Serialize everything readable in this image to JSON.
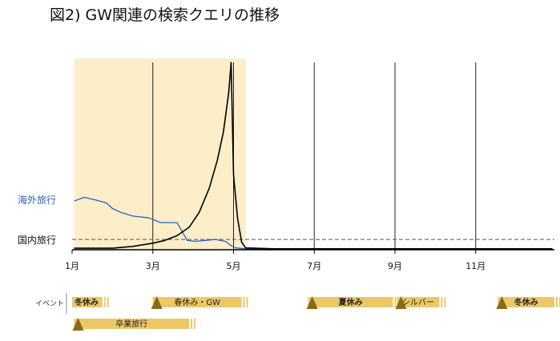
{
  "title": "図2) GW関連の検索クエリの推移",
  "colors": {
    "highlight": "#fbeec8",
    "overseas": "#2c5fbf",
    "domestic": "#000000",
    "event_bar": "#ecc868",
    "event_marker": "#8a6a1a"
  },
  "chart_data": {
    "type": "line",
    "x_unit": "month",
    "xlim": [
      1,
      12.95
    ],
    "ylim": [
      0,
      100
    ],
    "x_ticks": [
      {
        "x": 1,
        "label": "1月"
      },
      {
        "x": 3,
        "label": "3月"
      },
      {
        "x": 5,
        "label": "5月"
      },
      {
        "x": 7,
        "label": "7月"
      },
      {
        "x": 9,
        "label": "9月"
      },
      {
        "x": 11,
        "label": "11月"
      }
    ],
    "vertical_lines": [
      3,
      5,
      7,
      9,
      11
    ],
    "highlight_range": [
      1.05,
      5.3
    ],
    "baseline_value": 5.5,
    "series": [
      {
        "name": "海外旅行",
        "color": "#2c5fbf",
        "points": [
          [
            1.05,
            26
          ],
          [
            1.3,
            28
          ],
          [
            1.6,
            26.5
          ],
          [
            1.85,
            25
          ],
          [
            2.0,
            22
          ],
          [
            2.2,
            20
          ],
          [
            2.5,
            18
          ],
          [
            2.9,
            17
          ],
          [
            3.2,
            14.5
          ],
          [
            3.6,
            14.5
          ],
          [
            3.85,
            5
          ],
          [
            4.05,
            4.5
          ],
          [
            4.3,
            5
          ],
          [
            4.55,
            5.5
          ],
          [
            4.8,
            4.5
          ],
          [
            4.95,
            2
          ],
          [
            5.05,
            1
          ],
          [
            5.3,
            0.5
          ],
          [
            6.0,
            0.4
          ],
          [
            7.0,
            0.6
          ],
          [
            8.0,
            0.4
          ],
          [
            9.0,
            0.5
          ],
          [
            10.0,
            0.5
          ],
          [
            11.0,
            0.4
          ],
          [
            12.0,
            0.4
          ],
          [
            12.9,
            0.5
          ]
        ]
      },
      {
        "name": "国内旅行",
        "color": "#000000",
        "points": [
          [
            1.05,
            0.8
          ],
          [
            2.0,
            0.8
          ],
          [
            2.5,
            1.8
          ],
          [
            3.0,
            3.5
          ],
          [
            3.3,
            5
          ],
          [
            3.6,
            7.5
          ],
          [
            3.9,
            12
          ],
          [
            4.15,
            20
          ],
          [
            4.4,
            33
          ],
          [
            4.6,
            48
          ],
          [
            4.75,
            63
          ],
          [
            4.88,
            84
          ],
          [
            4.94,
            100
          ],
          [
            5.0,
            40
          ],
          [
            5.1,
            17
          ],
          [
            5.2,
            4
          ],
          [
            5.3,
            1
          ],
          [
            6.0,
            0.5
          ],
          [
            7.0,
            0.5
          ],
          [
            8.0,
            0.5
          ],
          [
            9.0,
            0.5
          ],
          [
            10.0,
            0.5
          ],
          [
            11.0,
            0.5
          ],
          [
            12.0,
            0.5
          ],
          [
            12.9,
            0.5
          ]
        ]
      }
    ]
  },
  "events": {
    "row_label": "イベント",
    "items": [
      {
        "label": "冬休み",
        "start": 1.0,
        "end": 1.75,
        "row": 0,
        "marker": false,
        "bold": true
      },
      {
        "label": "春休み・GW",
        "start": 3.0,
        "end": 5.2,
        "row": 0,
        "marker": true,
        "bold": false
      },
      {
        "label": "夏休み",
        "start": 6.85,
        "end": 8.95,
        "row": 0,
        "marker": true,
        "bold": true
      },
      {
        "label": "シルバー",
        "start": 9.05,
        "end": 10.1,
        "row": 0,
        "marker": true,
        "bold": false
      },
      {
        "label": "冬休み",
        "start": 11.55,
        "end": 12.95,
        "row": 0,
        "marker": true,
        "bold": true
      },
      {
        "label": "卒業旅行",
        "start": 1.05,
        "end": 3.9,
        "row": 1,
        "marker": true,
        "bold": false
      }
    ]
  }
}
